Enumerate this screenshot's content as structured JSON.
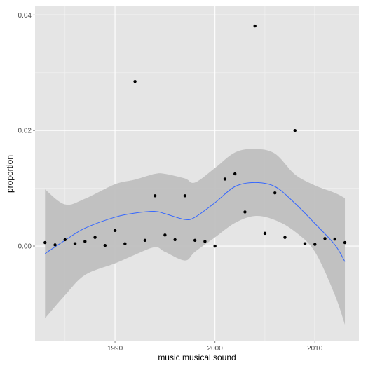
{
  "chart_data": {
    "type": "scatter",
    "title": "",
    "xlabel": "music musical sound",
    "ylabel": "proportion",
    "xlim": [
      1982,
      2014.4
    ],
    "ylim": [
      -0.0165,
      0.0415
    ],
    "x_ticks": [
      1990,
      2000,
      2010
    ],
    "y_ticks": [
      0.0,
      0.02,
      0.04
    ],
    "x_tick_labels": [
      "1990",
      "2000",
      "2010"
    ],
    "y_tick_labels": [
      "0.00",
      "0.02",
      "0.04"
    ],
    "grid": true,
    "legend": "none",
    "points": [
      {
        "x": 1983,
        "y": 0.0006
      },
      {
        "x": 1984,
        "y": 0.0002
      },
      {
        "x": 1985,
        "y": 0.0011
      },
      {
        "x": 1986,
        "y": 0.0004
      },
      {
        "x": 1987,
        "y": 0.0008
      },
      {
        "x": 1988,
        "y": 0.0015
      },
      {
        "x": 1989,
        "y": 0.0001
      },
      {
        "x": 1990,
        "y": 0.0027
      },
      {
        "x": 1991,
        "y": 0.0004
      },
      {
        "x": 1992,
        "y": 0.0285
      },
      {
        "x": 1993,
        "y": 0.001
      },
      {
        "x": 1994,
        "y": 0.0087
      },
      {
        "x": 1995,
        "y": 0.0019
      },
      {
        "x": 1996,
        "y": 0.0011
      },
      {
        "x": 1997,
        "y": 0.0087
      },
      {
        "x": 1998,
        "y": 0.001
      },
      {
        "x": 1999,
        "y": 0.0008
      },
      {
        "x": 2000,
        "y": 0.0
      },
      {
        "x": 2001,
        "y": 0.0116
      },
      {
        "x": 2002,
        "y": 0.0125
      },
      {
        "x": 2003,
        "y": 0.0059
      },
      {
        "x": 2004,
        "y": 0.0381
      },
      {
        "x": 2005,
        "y": 0.0022
      },
      {
        "x": 2006,
        "y": 0.0092
      },
      {
        "x": 2007,
        "y": 0.0015
      },
      {
        "x": 2008,
        "y": 0.02
      },
      {
        "x": 2009,
        "y": 0.0004
      },
      {
        "x": 2010,
        "y": 0.0003
      },
      {
        "x": 2011,
        "y": 0.0013
      },
      {
        "x": 2012,
        "y": 0.0012
      },
      {
        "x": 2013,
        "y": 0.0006
      }
    ],
    "smooth": {
      "x": [
        1983,
        1985,
        1987,
        1990,
        1992,
        1994,
        1995,
        1997,
        1998,
        2000,
        2002,
        2004,
        2006,
        2008,
        2010,
        2012,
        2013
      ],
      "y": [
        -0.0013,
        0.001,
        0.0031,
        0.005,
        0.0057,
        0.006,
        0.0056,
        0.0046,
        0.005,
        0.0075,
        0.0103,
        0.011,
        0.0103,
        0.0074,
        0.0039,
        0.0002,
        -0.0027
      ],
      "lower": [
        -0.0125,
        -0.0085,
        -0.005,
        -0.003,
        -0.0015,
        -0.0002,
        -0.001,
        -0.0025,
        -0.001,
        0.0015,
        0.004,
        0.0052,
        0.0045,
        0.0025,
        -0.001,
        -0.0085,
        -0.0136
      ],
      "upper": [
        0.0098,
        0.0072,
        0.0082,
        0.0107,
        0.0115,
        0.0125,
        0.0125,
        0.0117,
        0.011,
        0.0135,
        0.0162,
        0.0168,
        0.016,
        0.0124,
        0.0105,
        0.0092,
        0.0083
      ]
    },
    "colors": {
      "panel": "#e5e5e5",
      "grid_major": "#ffffff",
      "grid_minor": "#f2f2f2",
      "ribbon": "#bfbfbf",
      "line": "#3366ff",
      "point": "#000000"
    }
  }
}
